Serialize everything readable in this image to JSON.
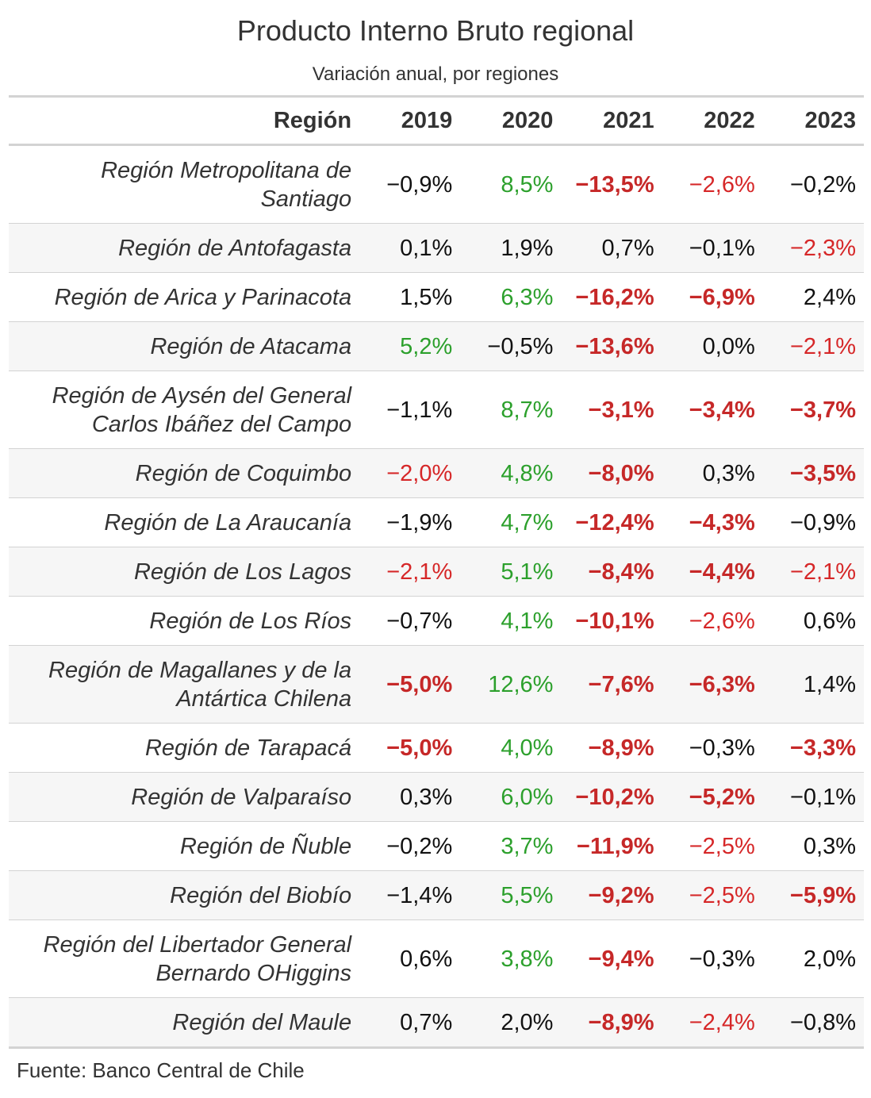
{
  "chart_data": {
    "type": "table",
    "title": "Producto Interno Bruto regional",
    "subtitle": "Variación anual, por regiones",
    "source": "Fuente: Banco Central de Chile",
    "header": {
      "region": "Región",
      "years": [
        "2019",
        "2020",
        "2021",
        "2022",
        "2023"
      ]
    },
    "colors": {
      "positive": "#2ca02c",
      "negative": "#d62728",
      "strong_negative": "#c62828",
      "neutral": "#111111"
    },
    "rows": [
      {
        "region": "Región Metropolitana de Santiago",
        "values": [
          -0.9,
          8.5,
          -13.5,
          -2.6,
          -0.2
        ],
        "display": [
          "−0,9%",
          "8,5%",
          "−13,5%",
          "−2,6%",
          "−0,2%"
        ]
      },
      {
        "region": "Región de Antofagasta",
        "values": [
          0.1,
          1.9,
          0.7,
          -0.1,
          -2.3
        ],
        "display": [
          "0,1%",
          "1,9%",
          "0,7%",
          "−0,1%",
          "−2,3%"
        ]
      },
      {
        "region": "Región de Arica y Parinacota",
        "values": [
          1.5,
          6.3,
          -16.2,
          -6.9,
          2.4
        ],
        "display": [
          "1,5%",
          "6,3%",
          "−16,2%",
          "−6,9%",
          "2,4%"
        ]
      },
      {
        "region": "Región de Atacama",
        "values": [
          5.2,
          -0.5,
          -13.6,
          0.0,
          -2.1
        ],
        "display": [
          "5,2%",
          "−0,5%",
          "−13,6%",
          "0,0%",
          "−2,1%"
        ]
      },
      {
        "region": "Región de Aysén del General Carlos Ibáñez del Campo",
        "values": [
          -1.1,
          8.7,
          -3.1,
          -3.4,
          -3.7
        ],
        "display": [
          "−1,1%",
          "8,7%",
          "−3,1%",
          "−3,4%",
          "−3,7%"
        ]
      },
      {
        "region": "Región de Coquimbo",
        "values": [
          -2.0,
          4.8,
          -8.0,
          0.3,
          -3.5
        ],
        "display": [
          "−2,0%",
          "4,8%",
          "−8,0%",
          "0,3%",
          "−3,5%"
        ]
      },
      {
        "region": "Región de La Araucanía",
        "values": [
          -1.9,
          4.7,
          -12.4,
          -4.3,
          -0.9
        ],
        "display": [
          "−1,9%",
          "4,7%",
          "−12,4%",
          "−4,3%",
          "−0,9%"
        ]
      },
      {
        "region": "Región de Los Lagos",
        "values": [
          -2.1,
          5.1,
          -8.4,
          -4.4,
          -2.1
        ],
        "display": [
          "−2,1%",
          "5,1%",
          "−8,4%",
          "−4,4%",
          "−2,1%"
        ]
      },
      {
        "region": "Región de Los Ríos",
        "values": [
          -0.7,
          4.1,
          -10.1,
          -2.6,
          0.6
        ],
        "display": [
          "−0,7%",
          "4,1%",
          "−10,1%",
          "−2,6%",
          "0,6%"
        ]
      },
      {
        "region": "Región de Magallanes y de la Antártica Chilena",
        "values": [
          -5.0,
          12.6,
          -7.6,
          -6.3,
          1.4
        ],
        "display": [
          "−5,0%",
          "12,6%",
          "−7,6%",
          "−6,3%",
          "1,4%"
        ]
      },
      {
        "region": "Región de Tarapacá",
        "values": [
          -5.0,
          4.0,
          -8.9,
          -0.3,
          -3.3
        ],
        "display": [
          "−5,0%",
          "4,0%",
          "−8,9%",
          "−0,3%",
          "−3,3%"
        ]
      },
      {
        "region": "Región de Valparaíso",
        "values": [
          0.3,
          6.0,
          -10.2,
          -5.2,
          -0.1
        ],
        "display": [
          "0,3%",
          "6,0%",
          "−10,2%",
          "−5,2%",
          "−0,1%"
        ]
      },
      {
        "region": "Región de Ñuble",
        "values": [
          -0.2,
          3.7,
          -11.9,
          -2.5,
          0.3
        ],
        "display": [
          "−0,2%",
          "3,7%",
          "−11,9%",
          "−2,5%",
          "0,3%"
        ]
      },
      {
        "region": "Región del Biobío",
        "values": [
          -1.4,
          5.5,
          -9.2,
          -2.5,
          -5.9
        ],
        "display": [
          "−1,4%",
          "5,5%",
          "−9,2%",
          "−2,5%",
          "−5,9%"
        ]
      },
      {
        "region": "Región del Libertador General Bernardo OHiggins",
        "values": [
          0.6,
          3.8,
          -9.4,
          -0.3,
          2.0
        ],
        "display": [
          "0,6%",
          "3,8%",
          "−9,4%",
          "−0,3%",
          "2,0%"
        ]
      },
      {
        "region": "Región del Maule",
        "values": [
          0.7,
          2.0,
          -8.9,
          -2.4,
          -0.8
        ],
        "display": [
          "0,7%",
          "2,0%",
          "−8,9%",
          "−2,4%",
          "−0,8%"
        ]
      }
    ]
  }
}
